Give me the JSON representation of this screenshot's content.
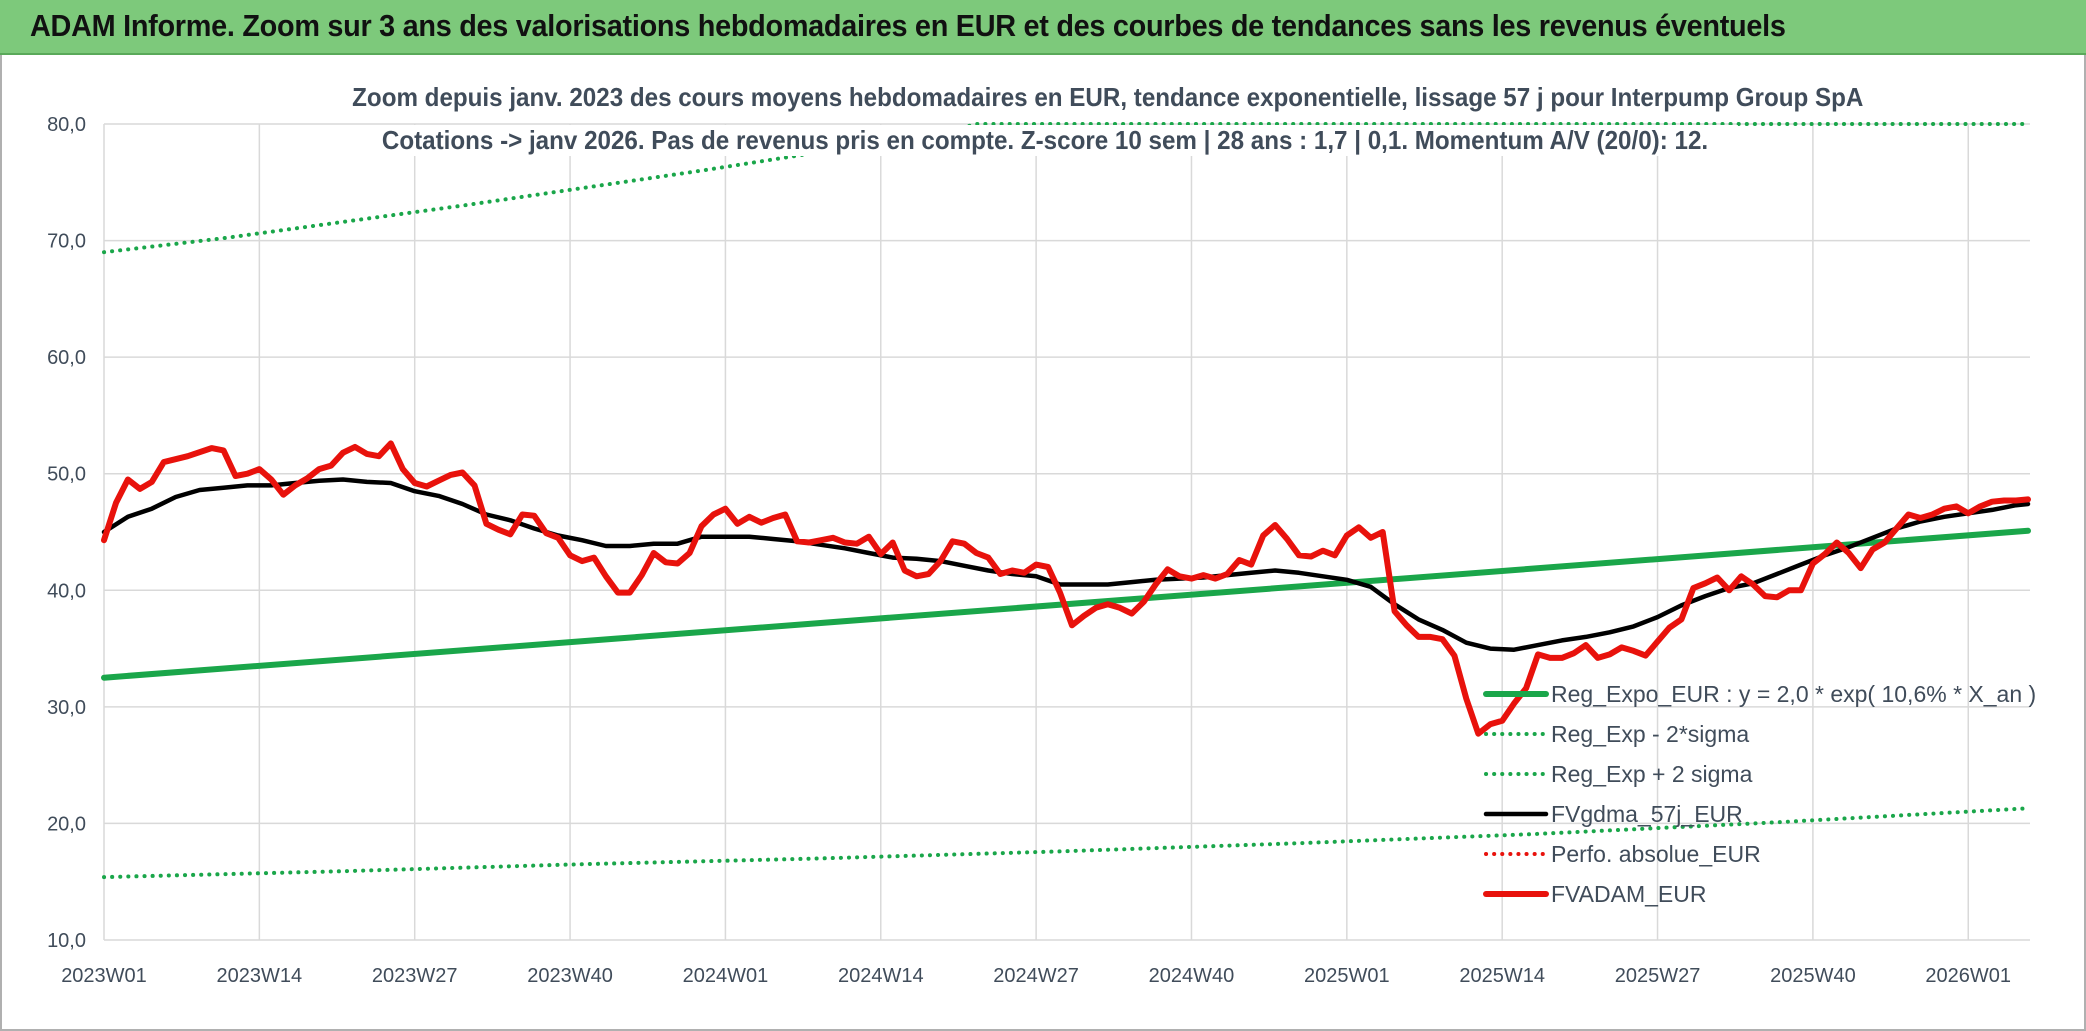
{
  "banner": {
    "title": "ADAM Informe. Zoom sur 3 ans des valorisations hebdomadaires en EUR et des courbes de tendances sans les revenus éventuels"
  },
  "colors": {
    "banner_bg": "#7dc97b",
    "regression": "#1aa64a",
    "fvgdma": "#000000",
    "fvadam": "#e8120c",
    "perfo": "#e8120c",
    "grid": "#d9d9d9",
    "text": "#404c5a"
  },
  "chart_data": {
    "type": "line",
    "title": "Zoom depuis janv. 2023 des cours moyens hebdomadaires en EUR, tendance exponentielle, lissage 57 j pour Interpump Group SpA",
    "subtitle": "Cotations -> janv 2026. Pas de revenus pris en compte. Z-score 10 sem | 28 ans : 1,7 | 0,1. Momentum A/V (20/0): 12.",
    "xlabel": "",
    "ylabel": "",
    "ylim": [
      10,
      80
    ],
    "y_ticks": [
      "10,0",
      "20,0",
      "30,0",
      "40,0",
      "50,0",
      "60,0",
      "70,0",
      "80,0"
    ],
    "x_ticks": [
      "2023W01",
      "2023W14",
      "2023W27",
      "2023W40",
      "2024W01",
      "2024W14",
      "2024W27",
      "2024W40",
      "2025W01",
      "2025W14",
      "2025W27",
      "2025W40",
      "2026W01"
    ],
    "x_range_weeks": [
      0,
      161
    ],
    "grid": true,
    "legend_position": "bottom-right",
    "series": [
      {
        "name": "Reg_Expo_EUR : y = 2,0 * exp( 10,6% *  X_an )",
        "style": "solid-thick",
        "color": "#1aa64a",
        "points": [
          [
            0,
            32.5
          ],
          [
            161,
            45.1
          ]
        ]
      },
      {
        "name": "Reg_Exp - 2*sigma",
        "style": "dotted",
        "color": "#1aa64a",
        "points": [
          [
            0,
            15.4
          ],
          [
            20,
            15.9
          ],
          [
            40,
            16.5
          ],
          [
            60,
            17.0
          ],
          [
            80,
            17.6
          ],
          [
            100,
            18.3
          ],
          [
            120,
            19.1
          ],
          [
            140,
            20.1
          ],
          [
            161,
            21.3
          ]
        ]
      },
      {
        "name": "Reg_Exp + 2 sigma",
        "style": "dotted",
        "color": "#1aa64a",
        "points": [
          [
            0,
            69.0
          ],
          [
            10,
            70.2
          ],
          [
            20,
            71.6
          ],
          [
            30,
            73.0
          ],
          [
            40,
            74.5
          ],
          [
            50,
            76.0
          ],
          [
            60,
            77.6
          ],
          [
            70,
            79.2
          ],
          [
            73,
            80.0
          ],
          [
            161,
            80.0
          ]
        ]
      },
      {
        "name": "FVgdma_57j_EUR",
        "style": "solid",
        "color": "#000000",
        "points": [
          [
            0,
            45.0
          ],
          [
            2,
            46.3
          ],
          [
            4,
            47.0
          ],
          [
            6,
            48.0
          ],
          [
            8,
            48.6
          ],
          [
            10,
            48.8
          ],
          [
            12,
            49.0
          ],
          [
            14,
            49.0
          ],
          [
            16,
            49.2
          ],
          [
            18,
            49.4
          ],
          [
            20,
            49.5
          ],
          [
            22,
            49.3
          ],
          [
            24,
            49.2
          ],
          [
            26,
            48.5
          ],
          [
            28,
            48.1
          ],
          [
            30,
            47.4
          ],
          [
            32,
            46.5
          ],
          [
            34,
            46.0
          ],
          [
            36,
            45.3
          ],
          [
            38,
            44.7
          ],
          [
            40,
            44.3
          ],
          [
            42,
            43.8
          ],
          [
            44,
            43.8
          ],
          [
            46,
            44.0
          ],
          [
            48,
            44.0
          ],
          [
            50,
            44.6
          ],
          [
            52,
            44.6
          ],
          [
            54,
            44.6
          ],
          [
            56,
            44.4
          ],
          [
            58,
            44.2
          ],
          [
            60,
            43.9
          ],
          [
            62,
            43.6
          ],
          [
            64,
            43.2
          ],
          [
            66,
            42.8
          ],
          [
            68,
            42.7
          ],
          [
            70,
            42.5
          ],
          [
            72,
            42.1
          ],
          [
            74,
            41.7
          ],
          [
            76,
            41.4
          ],
          [
            78,
            41.2
          ],
          [
            80,
            40.5
          ],
          [
            82,
            40.5
          ],
          [
            84,
            40.5
          ],
          [
            86,
            40.7
          ],
          [
            88,
            40.9
          ],
          [
            90,
            41.0
          ],
          [
            92,
            41.1
          ],
          [
            94,
            41.3
          ],
          [
            96,
            41.5
          ],
          [
            98,
            41.7
          ],
          [
            100,
            41.5
          ],
          [
            102,
            41.2
          ],
          [
            104,
            40.9
          ],
          [
            106,
            40.3
          ],
          [
            108,
            38.8
          ],
          [
            110,
            37.5
          ],
          [
            112,
            36.6
          ],
          [
            114,
            35.5
          ],
          [
            116,
            35.0
          ],
          [
            118,
            34.9
          ],
          [
            120,
            35.3
          ],
          [
            122,
            35.7
          ],
          [
            124,
            36.0
          ],
          [
            126,
            36.4
          ],
          [
            128,
            36.9
          ],
          [
            130,
            37.7
          ],
          [
            132,
            38.7
          ],
          [
            134,
            39.5
          ],
          [
            136,
            40.2
          ],
          [
            138,
            40.6
          ],
          [
            140,
            41.4
          ],
          [
            142,
            42.2
          ],
          [
            144,
            43.0
          ],
          [
            146,
            43.7
          ],
          [
            148,
            44.5
          ],
          [
            150,
            45.3
          ],
          [
            152,
            45.9
          ],
          [
            154,
            46.3
          ],
          [
            156,
            46.6
          ],
          [
            158,
            46.9
          ],
          [
            160,
            47.3
          ],
          [
            161,
            47.4
          ]
        ]
      },
      {
        "name": "Perfo. absolue_EUR",
        "style": "dotted",
        "color": "#e8120c",
        "points": []
      },
      {
        "name": "FVADAM_EUR",
        "style": "solid-thick",
        "color": "#e8120c",
        "points": [
          [
            0,
            44.3
          ],
          [
            1,
            47.5
          ],
          [
            2,
            49.5
          ],
          [
            3,
            48.7
          ],
          [
            4,
            49.3
          ],
          [
            5,
            51.0
          ],
          [
            7,
            51.5
          ],
          [
            9,
            52.2
          ],
          [
            10,
            52.0
          ],
          [
            11,
            49.8
          ],
          [
            12,
            50.0
          ],
          [
            13,
            50.4
          ],
          [
            14,
            49.5
          ],
          [
            15,
            48.2
          ],
          [
            16,
            49.0
          ],
          [
            17,
            49.6
          ],
          [
            18,
            50.4
          ],
          [
            19,
            50.7
          ],
          [
            20,
            51.8
          ],
          [
            21,
            52.3
          ],
          [
            22,
            51.7
          ],
          [
            23,
            51.5
          ],
          [
            24,
            52.6
          ],
          [
            25,
            50.4
          ],
          [
            26,
            49.2
          ],
          [
            27,
            48.9
          ],
          [
            28,
            49.4
          ],
          [
            29,
            49.9
          ],
          [
            30,
            50.1
          ],
          [
            31,
            49.0
          ],
          [
            32,
            45.7
          ],
          [
            33,
            45.2
          ],
          [
            34,
            44.8
          ],
          [
            35,
            46.5
          ],
          [
            36,
            46.4
          ],
          [
            37,
            44.9
          ],
          [
            38,
            44.5
          ],
          [
            39,
            43.0
          ],
          [
            40,
            42.5
          ],
          [
            41,
            42.8
          ],
          [
            42,
            41.2
          ],
          [
            43,
            39.8
          ],
          [
            44,
            39.8
          ],
          [
            45,
            41.3
          ],
          [
            46,
            43.2
          ],
          [
            47,
            42.4
          ],
          [
            48,
            42.3
          ],
          [
            49,
            43.2
          ],
          [
            50,
            45.5
          ],
          [
            51,
            46.5
          ],
          [
            52,
            47.0
          ],
          [
            53,
            45.7
          ],
          [
            54,
            46.3
          ],
          [
            55,
            45.8
          ],
          [
            56,
            46.2
          ],
          [
            57,
            46.5
          ],
          [
            58,
            44.2
          ],
          [
            59,
            44.1
          ],
          [
            60,
            44.3
          ],
          [
            61,
            44.5
          ],
          [
            62,
            44.1
          ],
          [
            63,
            44.0
          ],
          [
            64,
            44.6
          ],
          [
            65,
            43.1
          ],
          [
            66,
            44.1
          ],
          [
            67,
            41.7
          ],
          [
            68,
            41.2
          ],
          [
            69,
            41.4
          ],
          [
            70,
            42.5
          ],
          [
            71,
            44.2
          ],
          [
            72,
            44.0
          ],
          [
            73,
            43.2
          ],
          [
            74,
            42.8
          ],
          [
            75,
            41.4
          ],
          [
            76,
            41.7
          ],
          [
            77,
            41.5
          ],
          [
            78,
            42.2
          ],
          [
            79,
            42.0
          ],
          [
            80,
            39.8
          ],
          [
            81,
            37.0
          ],
          [
            82,
            37.8
          ],
          [
            83,
            38.5
          ],
          [
            84,
            38.8
          ],
          [
            85,
            38.5
          ],
          [
            86,
            38.0
          ],
          [
            87,
            39.0
          ],
          [
            88,
            40.5
          ],
          [
            89,
            41.8
          ],
          [
            90,
            41.2
          ],
          [
            91,
            41.0
          ],
          [
            92,
            41.3
          ],
          [
            93,
            41.0
          ],
          [
            94,
            41.4
          ],
          [
            95,
            42.6
          ],
          [
            96,
            42.2
          ],
          [
            97,
            44.7
          ],
          [
            98,
            45.6
          ],
          [
            99,
            44.4
          ],
          [
            100,
            43.0
          ],
          [
            101,
            42.9
          ],
          [
            102,
            43.4
          ],
          [
            103,
            43.0
          ],
          [
            104,
            44.7
          ],
          [
            105,
            45.4
          ],
          [
            106,
            44.5
          ],
          [
            107,
            45.0
          ],
          [
            108,
            38.2
          ],
          [
            109,
            37.0
          ],
          [
            110,
            36.0
          ],
          [
            111,
            36.0
          ],
          [
            112,
            35.8
          ],
          [
            113,
            34.4
          ],
          [
            114,
            30.7
          ],
          [
            115,
            27.7
          ],
          [
            116,
            28.5
          ],
          [
            117,
            28.8
          ],
          [
            118,
            30.3
          ],
          [
            119,
            31.6
          ],
          [
            120,
            34.5
          ],
          [
            121,
            34.2
          ],
          [
            122,
            34.2
          ],
          [
            123,
            34.6
          ],
          [
            124,
            35.3
          ],
          [
            125,
            34.2
          ],
          [
            126,
            34.5
          ],
          [
            127,
            35.1
          ],
          [
            128,
            34.8
          ],
          [
            129,
            34.4
          ],
          [
            130,
            35.6
          ],
          [
            131,
            36.8
          ],
          [
            132,
            37.5
          ],
          [
            133,
            40.2
          ],
          [
            134,
            40.6
          ],
          [
            135,
            41.1
          ],
          [
            136,
            40.0
          ],
          [
            137,
            41.2
          ],
          [
            138,
            40.5
          ],
          [
            139,
            39.5
          ],
          [
            140,
            39.4
          ],
          [
            141,
            40.0
          ],
          [
            142,
            40.0
          ],
          [
            143,
            42.3
          ],
          [
            144,
            43.1
          ],
          [
            145,
            44.1
          ],
          [
            146,
            43.2
          ],
          [
            147,
            41.9
          ],
          [
            148,
            43.5
          ],
          [
            149,
            44.1
          ],
          [
            150,
            45.3
          ],
          [
            151,
            46.5
          ],
          [
            152,
            46.2
          ],
          [
            153,
            46.5
          ],
          [
            154,
            47.0
          ],
          [
            155,
            47.2
          ],
          [
            156,
            46.6
          ],
          [
            157,
            47.2
          ],
          [
            158,
            47.6
          ],
          [
            159,
            47.7
          ],
          [
            160,
            47.7
          ],
          [
            161,
            47.8
          ]
        ]
      }
    ]
  }
}
